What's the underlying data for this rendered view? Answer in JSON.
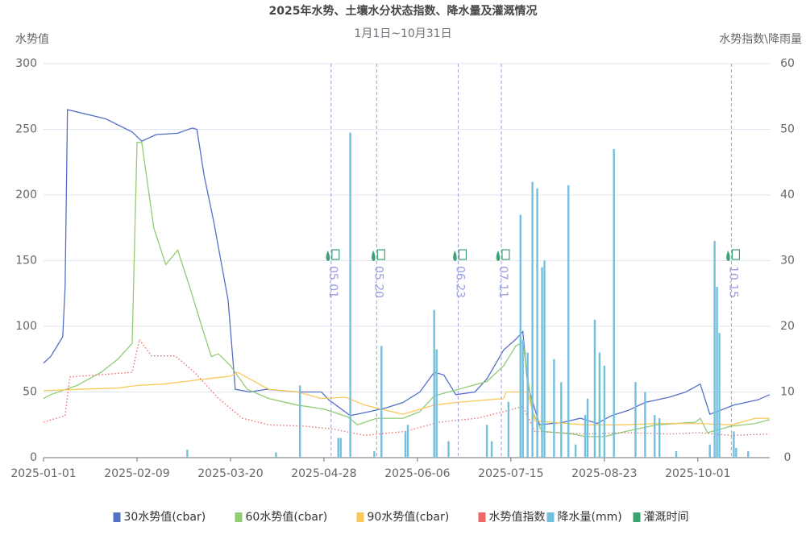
{
  "chart_data": {
    "type": "line",
    "title": "2025年水势、土壤水分状态指数、降水量及灌溉情况",
    "subtitle": "1月1日~10月31日",
    "y_label": "水势值",
    "y2_label": "水势指数\\降雨量",
    "xlim": [
      "2025-01-01",
      "2025-10-31"
    ],
    "xticks": [
      "2025-01-01",
      "2025-02-09",
      "2025-03-20",
      "2025-04-28",
      "2025-06-06",
      "2025-07-15",
      "2025-08-23",
      "2025-10-01"
    ],
    "ylim": [
      0,
      300
    ],
    "yticks": [
      0,
      50,
      100,
      150,
      200,
      250,
      300
    ],
    "y2lim": [
      0,
      60
    ],
    "y2ticks": [
      0,
      10,
      20,
      30,
      40,
      50,
      60
    ],
    "grid": true,
    "legend": "bottom",
    "series": [
      {
        "name": "30水势值(cbar)",
        "type": "line",
        "color": "#5470c6",
        "x": [
          "2025-01-01",
          "2025-01-04",
          "2025-01-09",
          "2025-01-10",
          "2025-01-11",
          "2025-01-27",
          "2025-02-07",
          "2025-02-11",
          "2025-02-17",
          "2025-02-26",
          "2025-03-04",
          "2025-03-06",
          "2025-03-09",
          "2025-03-13",
          "2025-03-19",
          "2025-03-22",
          "2025-03-28",
          "2025-04-04",
          "2025-04-17",
          "2025-04-27",
          "2025-04-30",
          "2025-05-09",
          "2025-05-17",
          "2025-05-24",
          "2025-05-31",
          "2025-06-07",
          "2025-06-13",
          "2025-06-17",
          "2025-06-22",
          "2025-06-30",
          "2025-07-05",
          "2025-07-12",
          "2025-07-17",
          "2025-07-20",
          "2025-07-22",
          "2025-07-27",
          "2025-08-06",
          "2025-08-13",
          "2025-08-20",
          "2025-08-26",
          "2025-09-02",
          "2025-09-09",
          "2025-09-19",
          "2025-09-26",
          "2025-10-02",
          "2025-10-06",
          "2025-10-16",
          "2025-10-26",
          "2025-10-31"
        ],
        "values": [
          72,
          77,
          92,
          130,
          265,
          258,
          248,
          241,
          246,
          247,
          251,
          250,
          215,
          180,
          120,
          52,
          50,
          52,
          50,
          50,
          44,
          32,
          35,
          38,
          42,
          50,
          65,
          63,
          48,
          50,
          60,
          82,
          90,
          96,
          55,
          25,
          27,
          30,
          26,
          32,
          36,
          42,
          46,
          50,
          56,
          33,
          40,
          44,
          48
        ]
      },
      {
        "name": "60水势值(cbar)",
        "type": "line",
        "color": "#91cc75",
        "x": [
          "2025-01-01",
          "2025-01-04",
          "2025-01-15",
          "2025-01-25",
          "2025-02-01",
          "2025-02-07",
          "2025-02-09",
          "2025-02-11",
          "2025-02-16",
          "2025-02-21",
          "2025-02-26",
          "2025-03-03",
          "2025-03-08",
          "2025-03-12",
          "2025-03-15",
          "2025-03-20",
          "2025-03-27",
          "2025-04-05",
          "2025-04-17",
          "2025-04-28",
          "2025-05-08",
          "2025-05-12",
          "2025-05-20",
          "2025-05-31",
          "2025-06-07",
          "2025-06-13",
          "2025-06-25",
          "2025-07-05",
          "2025-07-12",
          "2025-07-17",
          "2025-07-20",
          "2025-07-24",
          "2025-07-28",
          "2025-08-10",
          "2025-08-15",
          "2025-08-23",
          "2025-09-01",
          "2025-09-14",
          "2025-09-30",
          "2025-10-02",
          "2025-10-05",
          "2025-10-15",
          "2025-10-25",
          "2025-10-31"
        ],
        "values": [
          45,
          48,
          55,
          65,
          75,
          87,
          240,
          240,
          175,
          147,
          158,
          130,
          100,
          77,
          79,
          70,
          52,
          45,
          40,
          37,
          31,
          25,
          30,
          30,
          35,
          47,
          53,
          58,
          70,
          85,
          88,
          35,
          20,
          18,
          16,
          16,
          20,
          25,
          27,
          30,
          19,
          24,
          26,
          29
        ]
      },
      {
        "name": "90水势值(cbar)",
        "type": "line",
        "color": "#fac858",
        "x": [
          "2025-01-01",
          "2025-01-15",
          "2025-02-01",
          "2025-02-09",
          "2025-02-20",
          "2025-03-01",
          "2025-03-10",
          "2025-03-20",
          "2025-03-23",
          "2025-04-05",
          "2025-04-17",
          "2025-04-27",
          "2025-05-07",
          "2025-05-15",
          "2025-05-31",
          "2025-06-13",
          "2025-06-22",
          "2025-07-05",
          "2025-07-12",
          "2025-07-13",
          "2025-07-22",
          "2025-07-25",
          "2025-08-15",
          "2025-08-30",
          "2025-09-15",
          "2025-10-01",
          "2025-10-15",
          "2025-10-25",
          "2025-10-31"
        ],
        "values": [
          51,
          52,
          53,
          55,
          56,
          58,
          60,
          62,
          65,
          52,
          50,
          45,
          46,
          40,
          33,
          40,
          42,
          44,
          45,
          50,
          50,
          28,
          25,
          25,
          26,
          26,
          25,
          30,
          30
        ]
      },
      {
        "name": "水势值指数",
        "type": "line",
        "axis": "y2",
        "color": "#ee6666",
        "line_style": "dotted",
        "x": [
          "2025-01-01",
          "2025-01-10",
          "2025-01-12",
          "2025-01-20",
          "2025-02-07",
          "2025-02-10",
          "2025-02-15",
          "2025-02-25",
          "2025-03-05",
          "2025-03-15",
          "2025-03-25",
          "2025-04-05",
          "2025-04-20",
          "2025-05-01",
          "2025-05-15",
          "2025-06-01",
          "2025-06-15",
          "2025-07-01",
          "2025-07-12",
          "2025-07-20",
          "2025-07-25",
          "2025-08-15",
          "2025-09-01",
          "2025-09-20",
          "2025-10-01",
          "2025-10-15",
          "2025-10-31"
        ],
        "values": [
          5.4,
          6.4,
          12.3,
          12.5,
          13,
          18,
          15.5,
          15.5,
          13,
          9,
          6,
          5,
          4.8,
          4.4,
          3.4,
          4,
          5.4,
          6,
          7,
          7.8,
          4,
          3.6,
          3.8,
          3.6,
          3.8,
          3.4,
          3.6
        ]
      },
      {
        "name": "降水量(mm)",
        "type": "bar",
        "axis": "y2",
        "color": "#73c0de",
        "x": [
          "2025-03-02",
          "2025-04-08",
          "2025-04-18",
          "2025-05-04",
          "2025-05-05",
          "2025-05-09",
          "2025-05-19",
          "2025-05-22",
          "2025-06-01",
          "2025-06-02",
          "2025-06-13",
          "2025-06-14",
          "2025-06-19",
          "2025-07-05",
          "2025-07-07",
          "2025-07-14",
          "2025-07-19",
          "2025-07-20",
          "2025-07-22",
          "2025-07-24",
          "2025-07-26",
          "2025-07-28",
          "2025-07-29",
          "2025-08-02",
          "2025-08-05",
          "2025-08-08",
          "2025-08-11",
          "2025-08-15",
          "2025-08-16",
          "2025-08-19",
          "2025-08-21",
          "2025-08-23",
          "2025-08-27",
          "2025-09-05",
          "2025-09-09",
          "2025-09-13",
          "2025-09-15",
          "2025-09-22",
          "2025-10-06",
          "2025-10-08",
          "2025-10-09",
          "2025-10-10",
          "2025-10-16",
          "2025-10-17",
          "2025-10-22"
        ],
        "values": [
          1.2,
          0.8,
          11,
          3,
          3,
          49.5,
          1,
          17,
          4,
          5,
          22.5,
          16.5,
          2.5,
          5,
          2.5,
          8.5,
          37,
          18,
          16,
          42,
          41,
          29,
          30,
          15,
          11.5,
          41.5,
          2,
          6.5,
          9,
          21,
          16,
          14,
          47,
          11.5,
          10,
          6.5,
          6,
          1,
          2,
          33,
          26,
          19,
          4,
          1.5,
          1
        ]
      },
      {
        "name": "灌溉时间",
        "type": "marker",
        "color": "#3ba272",
        "x": [
          "2025-05-01",
          "2025-05-20",
          "2025-06-23",
          "2025-07-11",
          "2025-10-15"
        ],
        "labels": [
          "05.01",
          "05.20",
          "06.23",
          "07.11",
          "10.15"
        ]
      }
    ]
  }
}
